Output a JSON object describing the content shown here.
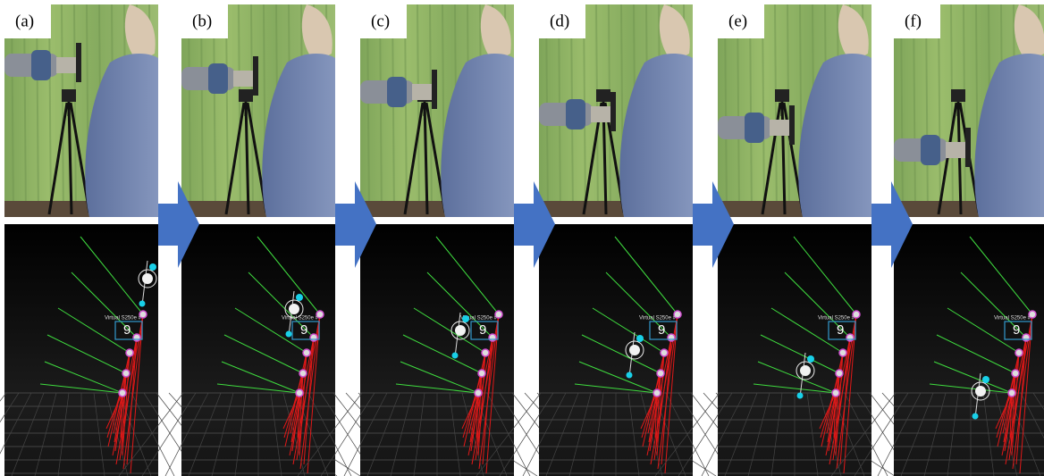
{
  "panels": [
    {
      "label": "(a)",
      "sensor_label": "Virtual S250e #",
      "marker": "9"
    },
    {
      "label": "(b)",
      "sensor_label": "Virtual S250e #",
      "marker": "9"
    },
    {
      "label": "(c)",
      "sensor_label": "Virtual S250e #",
      "marker": "9"
    },
    {
      "label": "(d)",
      "sensor_label": "Virtual S250e #",
      "marker": "9"
    },
    {
      "label": "(e)",
      "sensor_label": "Virtual S250e #",
      "marker": "9"
    },
    {
      "label": "(f)",
      "sensor_label": "Virtual S250e #",
      "marker": "9"
    }
  ]
}
